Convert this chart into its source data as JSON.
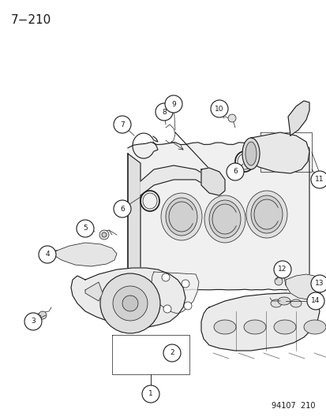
{
  "title": "7−210",
  "footer": "94107  210",
  "bg_color": "#ffffff",
  "line_color": "#1a1a1a",
  "title_fontsize": 11,
  "footer_fontsize": 7,
  "figsize": [
    4.14,
    5.33
  ],
  "dpi": 100
}
